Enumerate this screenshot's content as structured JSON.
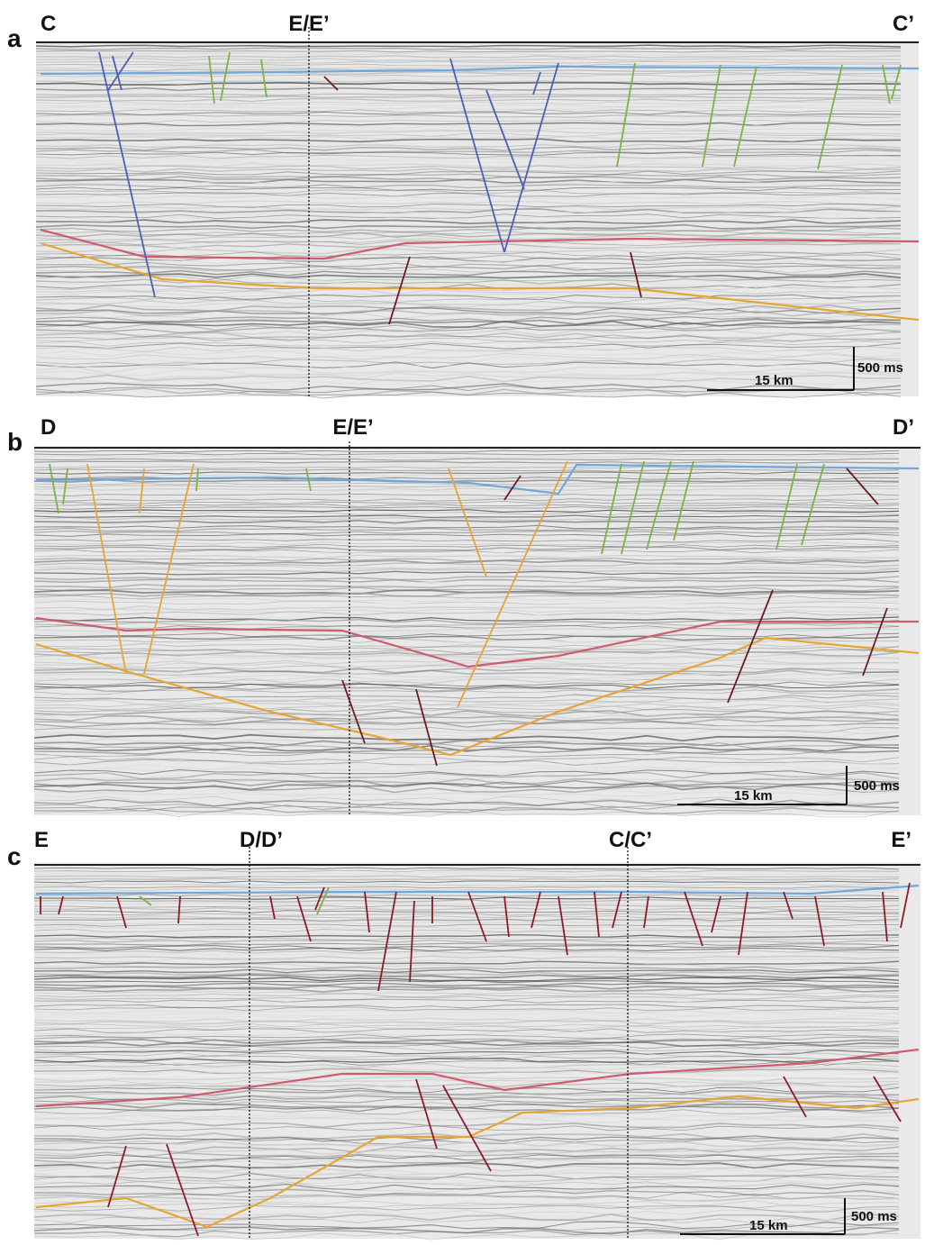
{
  "panels": [
    {
      "letter": "a",
      "labels": [
        "C",
        "E/E’",
        "C’"
      ],
      "scale_distance": "15 km",
      "scale_time": "500 ms"
    },
    {
      "letter": "b",
      "labels": [
        "D",
        "E/E’",
        "D’"
      ],
      "scale_distance": "15 km",
      "scale_time": "500 ms"
    },
    {
      "letter": "c",
      "labels": [
        "E",
        "D/D’",
        "C/C’",
        "E’"
      ],
      "scale_distance": "15 km",
      "scale_time": "500 ms"
    }
  ]
}
